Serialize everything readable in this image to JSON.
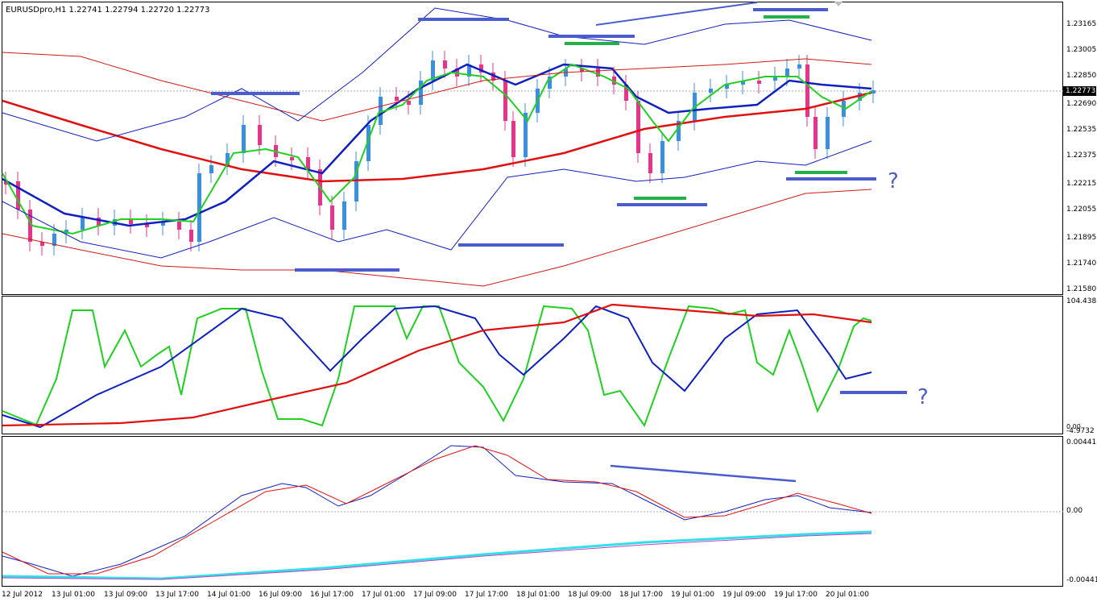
{
  "chart_window": {
    "title": "EURUSDpro,H1  1.22741 1.22794 1.22720 1.22773",
    "current_price": "1.22773"
  },
  "price_axis": {
    "labels": [
      "1.23165",
      "1.23005",
      "1.22850",
      "1.22690",
      "1.22535",
      "1.22375",
      "1.22215",
      "1.22055",
      "1.21895",
      "1.21740",
      "1.21580"
    ]
  },
  "oscillator_axis": {
    "top": "104.438",
    "bottom": "-4.9732",
    "zero": "0.00"
  },
  "macd_axis": {
    "top": "0.00441",
    "mid": "0.00",
    "bottom": "-0.00441"
  },
  "time_axis": {
    "labels": [
      "12 Jul 2012",
      "13 Jul 01:00",
      "13 Jul 09:00",
      "13 Jul 17:00",
      "14 Jul 01:00",
      "16 Jul 09:00",
      "16 Jul 17:00",
      "17 Jul 01:00",
      "17 Jul 09:00",
      "17 Jul 17:00",
      "18 Jul 01:00",
      "18 Jul 09:00",
      "18 Jul 17:00",
      "19 Jul 01:00",
      "19 Jul 09:00",
      "19 Jul 17:00",
      "20 Jul 01:00"
    ]
  },
  "annotations": {
    "question_mark_price": "?",
    "question_mark_osc": "?"
  },
  "colors": {
    "bull": "#3a8fe0",
    "bear": "#e8338a",
    "ma_fast": "#1fd11f",
    "ma_mid": "#1020c0",
    "ma_slow": "#e01010",
    "bands": "#d01818",
    "annot_blue": "#4b5ccc",
    "annot_green": "#22b04a",
    "signal_cyan": "#30e0e8"
  },
  "icons": {
    "scroll_marker": "triangle-down-icon"
  }
}
